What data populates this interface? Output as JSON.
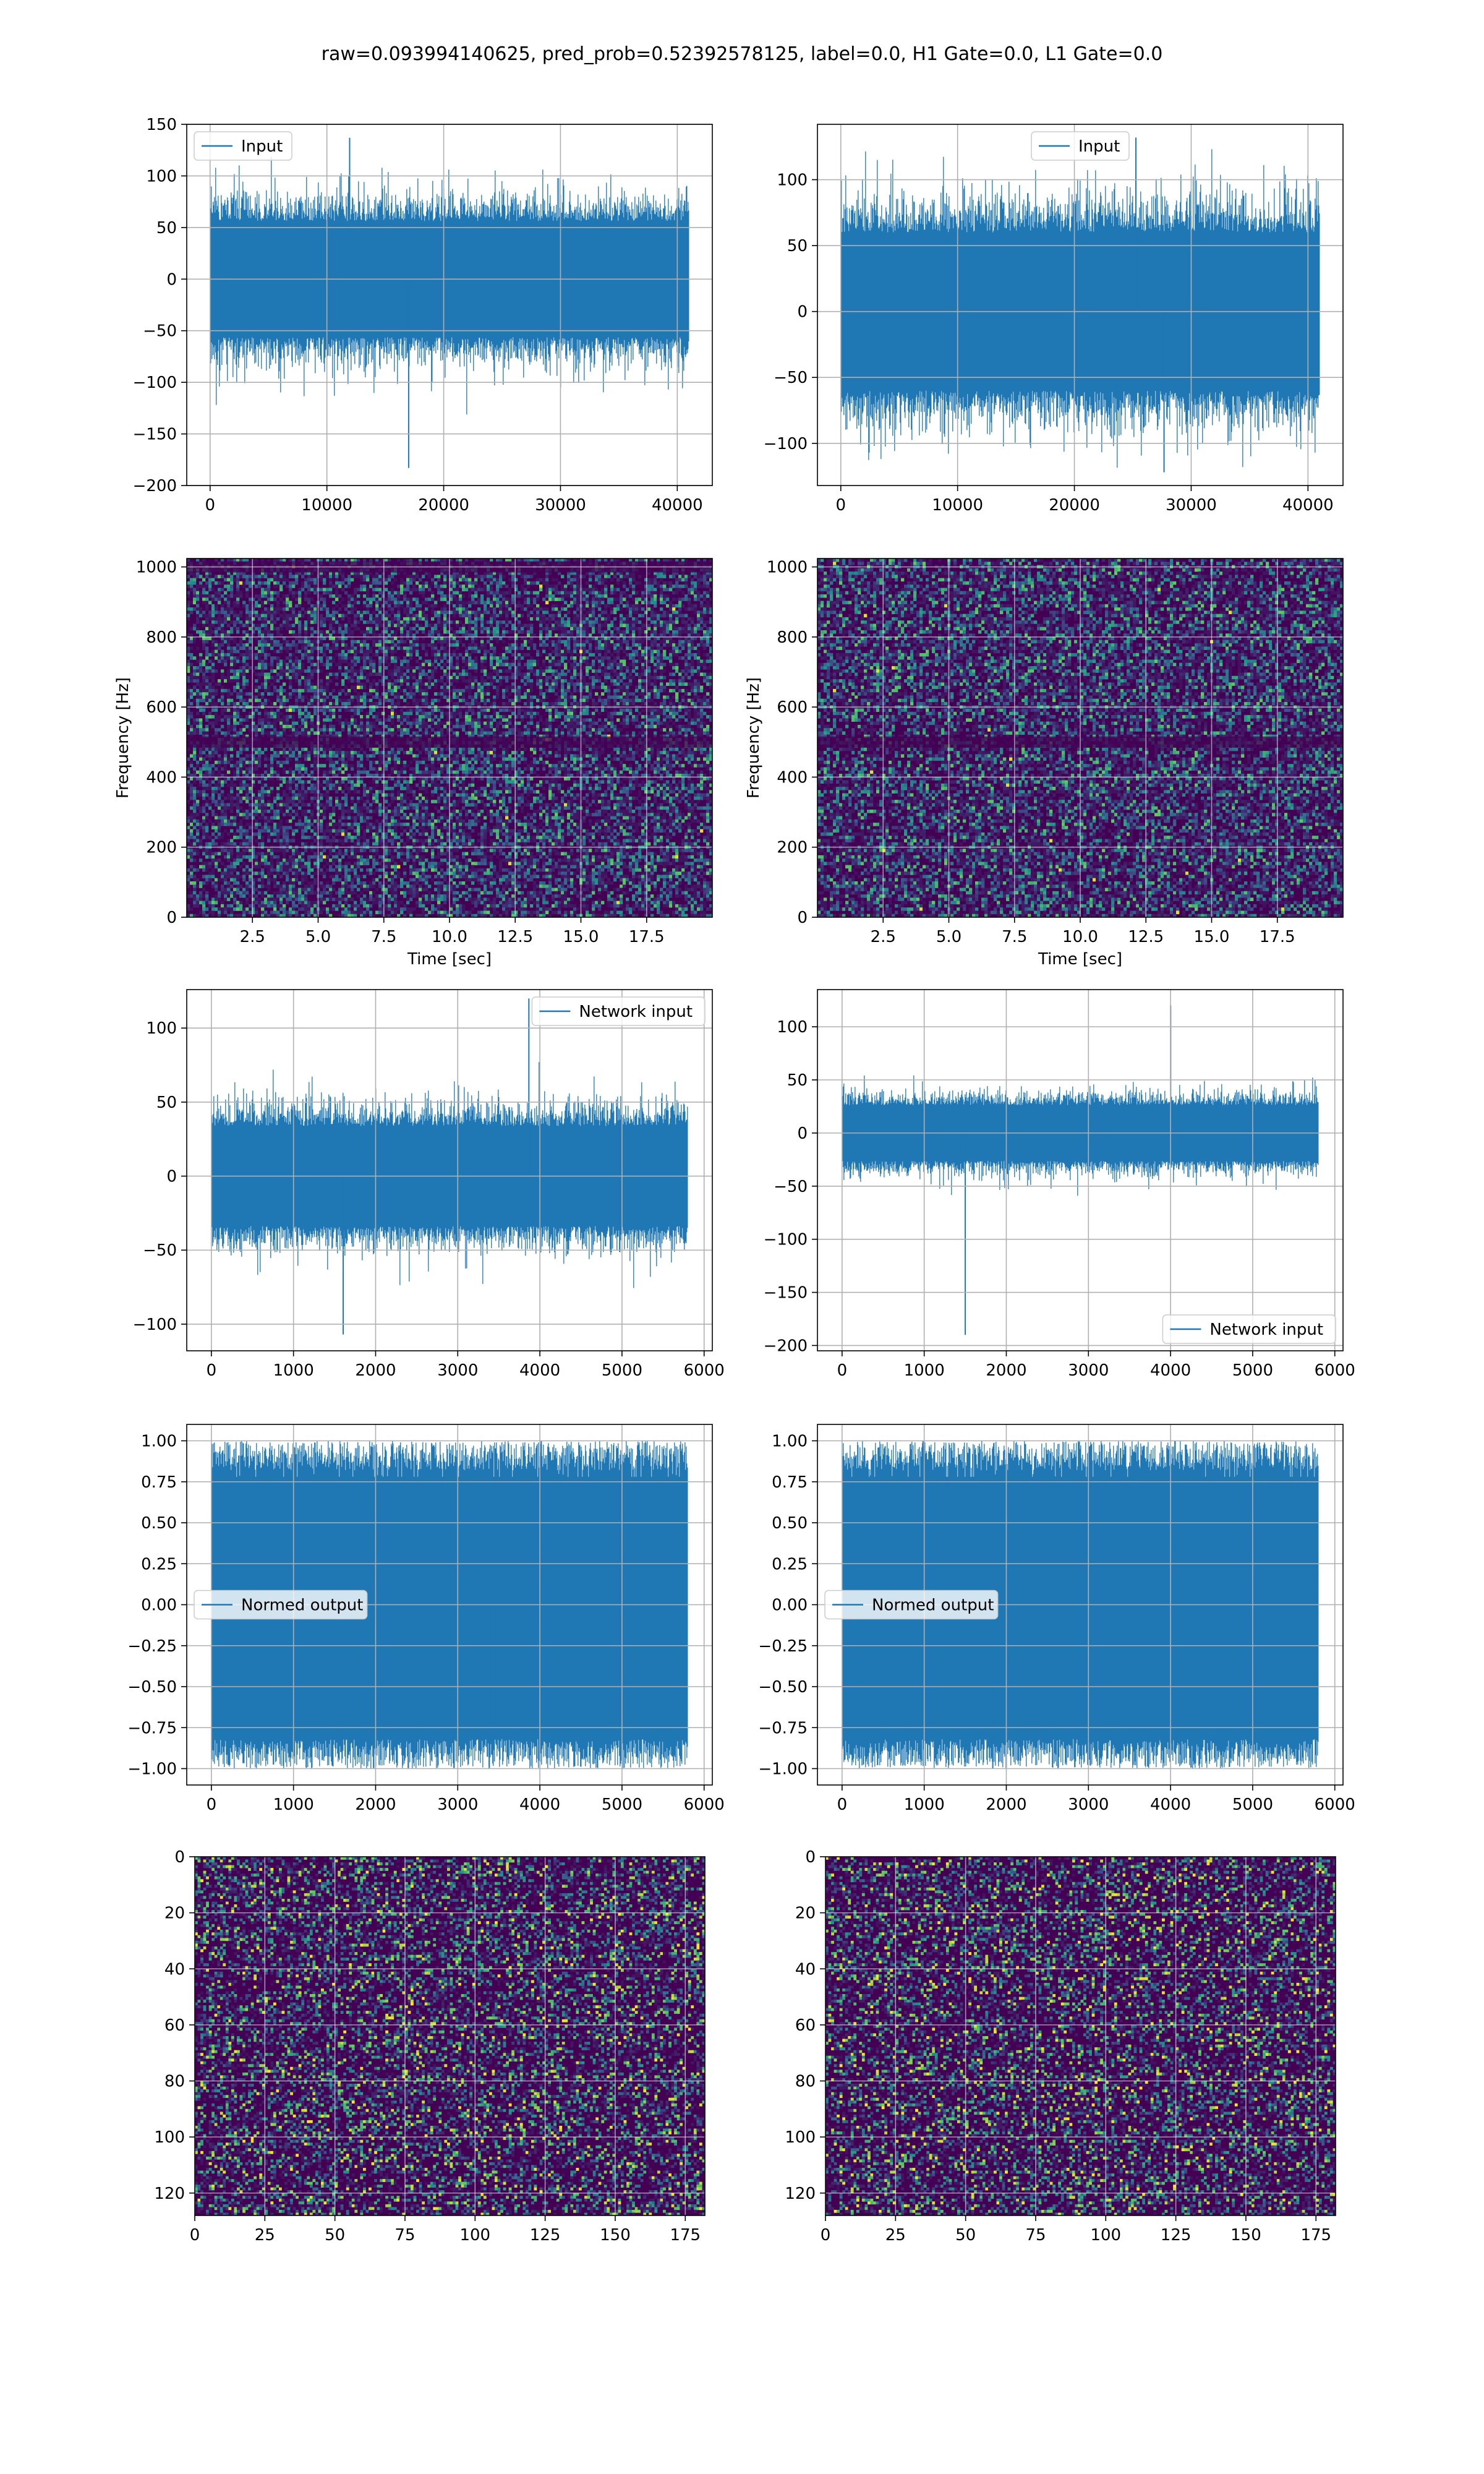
{
  "figure": {
    "suptitle": "raw=0.093994140625, pred_prob=0.52392578125, label=0.0, H1 Gate=0.0, L1 Gate=0.0"
  },
  "colors": {
    "series": "#1f77b4",
    "grid": "#b0b0b0",
    "viridis_low": "#440154",
    "viridis_mid": "#21918c",
    "viridis_high": "#fde725"
  },
  "chart_data": [
    {
      "id": "row1-left",
      "type": "line",
      "title": "",
      "xlabel": "",
      "ylabel": "",
      "series": [
        {
          "name": "Input",
          "envelope": {
            "n": 40960,
            "amplitude": 75,
            "peak_high": 137,
            "peak_low": -183,
            "peak_low_at": 17000
          }
        }
      ],
      "xlim": [
        -2000,
        43000
      ],
      "ylim": [
        -200,
        150
      ],
      "xticks": [
        0,
        10000,
        20000,
        30000,
        40000
      ],
      "xticklabels": [
        "0",
        "10000",
        "20000",
        "30000",
        "40000"
      ],
      "yticks": [
        -200,
        -150,
        -100,
        -50,
        0,
        50,
        100,
        150
      ],
      "yticklabels": [
        "−200",
        "−150",
        "−100",
        "−50",
        "0",
        "50",
        "100",
        "150"
      ],
      "legend": "upper-left",
      "grid": true
    },
    {
      "id": "row1-right",
      "type": "line",
      "title": "",
      "xlabel": "",
      "ylabel": "",
      "series": [
        {
          "name": "Input",
          "envelope": {
            "n": 40960,
            "amplitude": 80,
            "peak_high": 132,
            "peak_low": -122
          }
        }
      ],
      "xlim": [
        -2000,
        43000
      ],
      "ylim": [
        -132,
        142
      ],
      "xticks": [
        0,
        10000,
        20000,
        30000,
        40000
      ],
      "xticklabels": [
        "0",
        "10000",
        "20000",
        "30000",
        "40000"
      ],
      "yticks": [
        -100,
        -50,
        0,
        50,
        100
      ],
      "yticklabels": [
        "−100",
        "−50",
        "0",
        "50",
        "100"
      ],
      "legend": "upper-center",
      "grid": true
    },
    {
      "id": "row2-left",
      "type": "heatmap",
      "title": "",
      "xlabel": "Time [sec]",
      "ylabel": "Frequency [Hz]",
      "xlim": [
        0,
        20
      ],
      "ylim": [
        0,
        1024
      ],
      "xticks": [
        2.5,
        5.0,
        7.5,
        10.0,
        12.5,
        15.0,
        17.5
      ],
      "xticklabels": [
        "2.5",
        "5.0",
        "7.5",
        "10.0",
        "12.5",
        "15.0",
        "17.5"
      ],
      "yticks": [
        0,
        200,
        400,
        600,
        800,
        1000
      ],
      "yticklabels": [
        "0",
        "200",
        "400",
        "600",
        "800",
        "1000"
      ],
      "dark_band_hz": [
        500,
        1000
      ],
      "grid": true,
      "colormap": "viridis"
    },
    {
      "id": "row2-right",
      "type": "heatmap",
      "title": "",
      "xlabel": "Time [sec]",
      "ylabel": "Frequency [Hz]",
      "xlim": [
        0,
        20
      ],
      "ylim": [
        0,
        1024
      ],
      "xticks": [
        2.5,
        5.0,
        7.5,
        10.0,
        12.5,
        15.0,
        17.5
      ],
      "xticklabels": [
        "2.5",
        "5.0",
        "7.5",
        "10.0",
        "12.5",
        "15.0",
        "17.5"
      ],
      "yticks": [
        0,
        200,
        400,
        600,
        800,
        1000
      ],
      "yticklabels": [
        "0",
        "200",
        "400",
        "600",
        "800",
        "1000"
      ],
      "dark_band_hz": [
        500
      ],
      "grid": true,
      "colormap": "viridis"
    },
    {
      "id": "row3-left",
      "type": "line",
      "title": "",
      "xlabel": "",
      "ylabel": "",
      "series": [
        {
          "name": "Network input",
          "envelope": {
            "n": 5800,
            "amplitude": 45,
            "peak_high": 120,
            "peak_low": -107
          }
        }
      ],
      "xlim": [
        -300,
        6100
      ],
      "ylim": [
        -118,
        126
      ],
      "xticks": [
        0,
        1000,
        2000,
        3000,
        4000,
        5000,
        6000
      ],
      "xticklabels": [
        "0",
        "1000",
        "2000",
        "3000",
        "4000",
        "5000",
        "6000"
      ],
      "yticks": [
        -100,
        -50,
        0,
        50,
        100
      ],
      "yticklabels": [
        "−100",
        "−50",
        "0",
        "50",
        "100"
      ],
      "legend": "upper-right",
      "grid": true
    },
    {
      "id": "row3-right",
      "type": "line",
      "title": "",
      "xlabel": "",
      "ylabel": "",
      "series": [
        {
          "name": "Network input",
          "envelope": {
            "n": 5800,
            "amplitude": 35,
            "peak_high": 120,
            "peak_low": -190,
            "peak_low_at": 1500
          }
        }
      ],
      "xlim": [
        -300,
        6100
      ],
      "ylim": [
        -205,
        135
      ],
      "xticks": [
        0,
        1000,
        2000,
        3000,
        4000,
        5000,
        6000
      ],
      "xticklabels": [
        "0",
        "1000",
        "2000",
        "3000",
        "4000",
        "5000",
        "6000"
      ],
      "yticks": [
        -200,
        -150,
        -100,
        -50,
        0,
        50,
        100
      ],
      "yticklabels": [
        "−200",
        "−150",
        "−100",
        "−50",
        "0",
        "50",
        "100"
      ],
      "legend": "lower-right",
      "grid": true
    },
    {
      "id": "row4-left",
      "type": "line",
      "title": "",
      "xlabel": "",
      "ylabel": "",
      "series": [
        {
          "name": "Normed output",
          "envelope": {
            "n": 5800,
            "amplitude": 0.9,
            "peak_high": 1.0,
            "peak_low": -1.0
          }
        }
      ],
      "xlim": [
        -300,
        6100
      ],
      "ylim": [
        -1.1,
        1.1
      ],
      "xticks": [
        0,
        1000,
        2000,
        3000,
        4000,
        5000,
        6000
      ],
      "xticklabels": [
        "0",
        "1000",
        "2000",
        "3000",
        "4000",
        "5000",
        "6000"
      ],
      "yticks": [
        -1.0,
        -0.75,
        -0.5,
        -0.25,
        0.0,
        0.25,
        0.5,
        0.75,
        1.0
      ],
      "yticklabels": [
        "−1.00",
        "−0.75",
        "−0.50",
        "−0.25",
        "0.00",
        "0.25",
        "0.50",
        "0.75",
        "1.00"
      ],
      "legend": "center-left",
      "grid": true
    },
    {
      "id": "row4-right",
      "type": "line",
      "title": "",
      "xlabel": "",
      "ylabel": "",
      "series": [
        {
          "name": "Normed output",
          "envelope": {
            "n": 5800,
            "amplitude": 0.9,
            "peak_high": 1.0,
            "peak_low": -1.0
          }
        }
      ],
      "xlim": [
        -300,
        6100
      ],
      "ylim": [
        -1.1,
        1.1
      ],
      "xticks": [
        0,
        1000,
        2000,
        3000,
        4000,
        5000,
        6000
      ],
      "xticklabels": [
        "0",
        "1000",
        "2000",
        "3000",
        "4000",
        "5000",
        "6000"
      ],
      "yticks": [
        -1.0,
        -0.75,
        -0.5,
        -0.25,
        0.0,
        0.25,
        0.5,
        0.75,
        1.0
      ],
      "yticklabels": [
        "−1.00",
        "−0.75",
        "−0.50",
        "−0.25",
        "0.00",
        "0.25",
        "0.50",
        "0.75",
        "1.00"
      ],
      "legend": "center-left",
      "grid": true
    },
    {
      "id": "row5-left",
      "type": "heatmap",
      "title": "",
      "xlabel": "",
      "ylabel": "",
      "matrix_shape": [
        128,
        182
      ],
      "xlim": [
        0,
        182
      ],
      "ylim": [
        128,
        0
      ],
      "xticks": [
        0,
        25,
        50,
        75,
        100,
        125,
        150,
        175
      ],
      "xticklabels": [
        "0",
        "25",
        "50",
        "75",
        "100",
        "125",
        "150",
        "175"
      ],
      "yticks": [
        0,
        20,
        40,
        60,
        80,
        100,
        120
      ],
      "yticklabels": [
        "0",
        "20",
        "40",
        "60",
        "80",
        "100",
        "120"
      ],
      "grid": true,
      "colormap": "viridis"
    },
    {
      "id": "row5-right",
      "type": "heatmap",
      "title": "",
      "xlabel": "",
      "ylabel": "",
      "matrix_shape": [
        128,
        182
      ],
      "xlim": [
        0,
        182
      ],
      "ylim": [
        128,
        0
      ],
      "xticks": [
        0,
        25,
        50,
        75,
        100,
        125,
        150,
        175
      ],
      "xticklabels": [
        "0",
        "25",
        "50",
        "75",
        "100",
        "125",
        "150",
        "175"
      ],
      "yticks": [
        0,
        20,
        40,
        60,
        80,
        100,
        120
      ],
      "yticklabels": [
        "0",
        "20",
        "40",
        "60",
        "80",
        "100",
        "120"
      ],
      "grid": true,
      "colormap": "viridis"
    }
  ]
}
